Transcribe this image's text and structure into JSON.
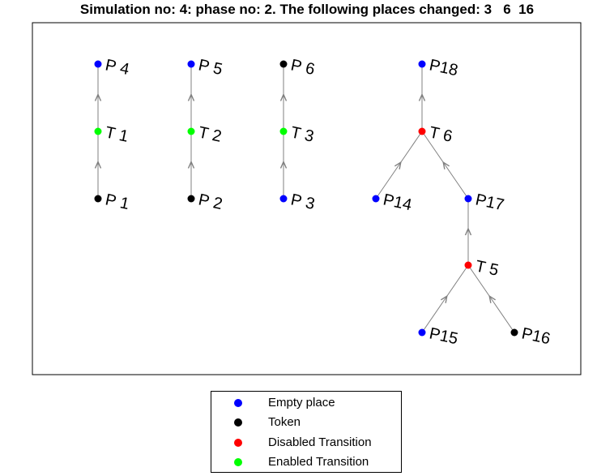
{
  "title": "Simulation no: 4: phase no: 2. The following places changed: 3   6  16",
  "colors": {
    "empty_place": "#0000ff",
    "token": "#000000",
    "disabled_transition": "#ff0000",
    "enabled_transition": "#00ff00",
    "edge": "#808080"
  },
  "nodes": [
    {
      "id": "P4",
      "label": "P 4",
      "state": "empty_place"
    },
    {
      "id": "P5",
      "label": "P 5",
      "state": "empty_place"
    },
    {
      "id": "P6",
      "label": "P 6",
      "state": "token"
    },
    {
      "id": "P18",
      "label": "P18",
      "state": "empty_place"
    },
    {
      "id": "T1",
      "label": "T 1",
      "state": "enabled_transition"
    },
    {
      "id": "T2",
      "label": "T 2",
      "state": "enabled_transition"
    },
    {
      "id": "T3",
      "label": "T 3",
      "state": "enabled_transition"
    },
    {
      "id": "T6",
      "label": "T 6",
      "state": "disabled_transition"
    },
    {
      "id": "P1",
      "label": "P 1",
      "state": "token"
    },
    {
      "id": "P2",
      "label": "P 2",
      "state": "token"
    },
    {
      "id": "P3",
      "label": "P 3",
      "state": "empty_place"
    },
    {
      "id": "P14",
      "label": "P14",
      "state": "empty_place"
    },
    {
      "id": "P17",
      "label": "P17",
      "state": "empty_place"
    },
    {
      "id": "T5",
      "label": "T 5",
      "state": "disabled_transition"
    },
    {
      "id": "P15",
      "label": "P15",
      "state": "empty_place"
    },
    {
      "id": "P16",
      "label": "P16",
      "state": "token"
    }
  ],
  "edges": [
    {
      "from": "P1",
      "to": "T1"
    },
    {
      "from": "T1",
      "to": "P4"
    },
    {
      "from": "P2",
      "to": "T2"
    },
    {
      "from": "T2",
      "to": "P5"
    },
    {
      "from": "P3",
      "to": "T3"
    },
    {
      "from": "T3",
      "to": "P6"
    },
    {
      "from": "P14",
      "to": "T6"
    },
    {
      "from": "P17",
      "to": "T6"
    },
    {
      "from": "T6",
      "to": "P18"
    },
    {
      "from": "P15",
      "to": "T5"
    },
    {
      "from": "P16",
      "to": "T5"
    },
    {
      "from": "T5",
      "to": "P17"
    }
  ],
  "legend": {
    "items": [
      {
        "label": "Empty place",
        "state": "empty_place"
      },
      {
        "label": "Token",
        "state": "token"
      },
      {
        "label": "Disabled Transition",
        "state": "disabled_transition"
      },
      {
        "label": "Enabled Transition",
        "state": "enabled_transition"
      }
    ]
  }
}
